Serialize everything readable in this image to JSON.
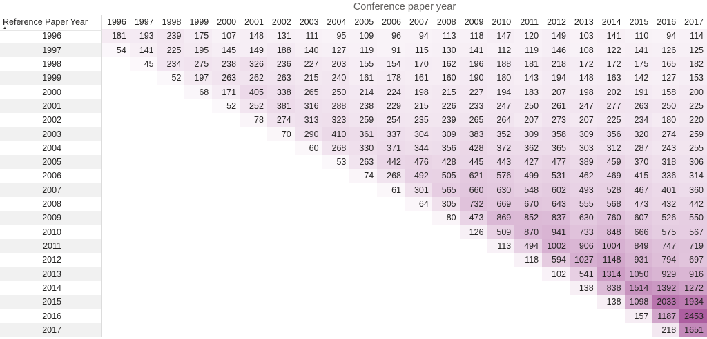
{
  "title": "Conference paper year",
  "header": {
    "corner_label": "Reference Paper Year",
    "sort_direction": "ascending",
    "sort_icon_glyph": "▲"
  },
  "colors": {
    "cell_text": "#252423",
    "title_text": "#605e5c",
    "row_stripe": "#f1f1f1",
    "grid_line": "#e6e6e6",
    "label_divider": "#dcdcdc",
    "heat_max": "#ad5ea0"
  },
  "chart_data": {
    "type": "heatmap",
    "title": "Conference paper year",
    "xlabel": "Conference paper year",
    "ylabel": "Reference Paper Year",
    "legend": "none",
    "row_banding": true,
    "sort": {
      "by": "Reference Paper Year",
      "direction": "ascending"
    },
    "color_scale": {
      "type": "sequential",
      "min_color": "#ffffff",
      "max_color": "#ad5ea0",
      "domain": [
        0,
        2453
      ],
      "gamma": 0.8
    },
    "columns": [
      1996,
      1997,
      1998,
      1999,
      2000,
      2001,
      2002,
      2003,
      2004,
      2005,
      2006,
      2007,
      2008,
      2009,
      2010,
      2011,
      2012,
      2013,
      2014,
      2015,
      2016,
      2017
    ],
    "rows": [
      1996,
      1997,
      1998,
      1999,
      2000,
      2001,
      2002,
      2003,
      2004,
      2005,
      2006,
      2007,
      2008,
      2009,
      2010,
      2011,
      2012,
      2013,
      2014,
      2015,
      2016,
      2017
    ],
    "matrix": [
      [
        181,
        193,
        239,
        175,
        107,
        148,
        131,
        111,
        95,
        109,
        96,
        94,
        113,
        118,
        147,
        120,
        149,
        103,
        141,
        110,
        94,
        114
      ],
      [
        54,
        141,
        225,
        195,
        145,
        149,
        188,
        140,
        127,
        119,
        91,
        115,
        130,
        141,
        112,
        119,
        146,
        108,
        122,
        141,
        126,
        125
      ],
      [
        null,
        45,
        234,
        275,
        238,
        326,
        236,
        227,
        203,
        155,
        154,
        170,
        162,
        196,
        188,
        181,
        218,
        172,
        172,
        175,
        165,
        182
      ],
      [
        null,
        null,
        52,
        197,
        263,
        262,
        263,
        215,
        240,
        161,
        178,
        161,
        160,
        190,
        180,
        143,
        194,
        148,
        163,
        142,
        127,
        153
      ],
      [
        null,
        null,
        null,
        68,
        171,
        405,
        338,
        265,
        250,
        214,
        224,
        198,
        215,
        227,
        194,
        183,
        207,
        198,
        202,
        191,
        158,
        200
      ],
      [
        null,
        null,
        null,
        null,
        52,
        252,
        381,
        316,
        288,
        238,
        229,
        215,
        226,
        233,
        247,
        250,
        261,
        247,
        277,
        263,
        250,
        225
      ],
      [
        null,
        null,
        null,
        null,
        null,
        78,
        274,
        313,
        323,
        259,
        254,
        235,
        239,
        265,
        264,
        207,
        273,
        207,
        225,
        234,
        180,
        220
      ],
      [
        null,
        null,
        null,
        null,
        null,
        null,
        70,
        290,
        410,
        361,
        337,
        304,
        309,
        383,
        352,
        309,
        358,
        309,
        356,
        320,
        274,
        259
      ],
      [
        null,
        null,
        null,
        null,
        null,
        null,
        null,
        60,
        268,
        330,
        371,
        344,
        356,
        428,
        372,
        362,
        365,
        303,
        312,
        287,
        243,
        255
      ],
      [
        null,
        null,
        null,
        null,
        null,
        null,
        null,
        null,
        53,
        263,
        442,
        476,
        428,
        445,
        443,
        427,
        477,
        389,
        459,
        370,
        318,
        306
      ],
      [
        null,
        null,
        null,
        null,
        null,
        null,
        null,
        null,
        null,
        74,
        268,
        492,
        505,
        621,
        576,
        499,
        531,
        462,
        469,
        415,
        336,
        314
      ],
      [
        null,
        null,
        null,
        null,
        null,
        null,
        null,
        null,
        null,
        null,
        61,
        301,
        565,
        660,
        630,
        548,
        602,
        493,
        528,
        467,
        401,
        360
      ],
      [
        null,
        null,
        null,
        null,
        null,
        null,
        null,
        null,
        null,
        null,
        null,
        64,
        305,
        732,
        669,
        670,
        643,
        555,
        568,
        473,
        432,
        442
      ],
      [
        null,
        null,
        null,
        null,
        null,
        null,
        null,
        null,
        null,
        null,
        null,
        null,
        80,
        473,
        869,
        852,
        837,
        630,
        760,
        607,
        526,
        550
      ],
      [
        null,
        null,
        null,
        null,
        null,
        null,
        null,
        null,
        null,
        null,
        null,
        null,
        null,
        126,
        509,
        870,
        941,
        733,
        848,
        666,
        575,
        567
      ],
      [
        null,
        null,
        null,
        null,
        null,
        null,
        null,
        null,
        null,
        null,
        null,
        null,
        null,
        null,
        113,
        494,
        1002,
        906,
        1004,
        849,
        747,
        719
      ],
      [
        null,
        null,
        null,
        null,
        null,
        null,
        null,
        null,
        null,
        null,
        null,
        null,
        null,
        null,
        null,
        118,
        594,
        1027,
        1148,
        931,
        794,
        697
      ],
      [
        null,
        null,
        null,
        null,
        null,
        null,
        null,
        null,
        null,
        null,
        null,
        null,
        null,
        null,
        null,
        null,
        102,
        541,
        1314,
        1050,
        929,
        916
      ],
      [
        null,
        null,
        null,
        null,
        null,
        null,
        null,
        null,
        null,
        null,
        null,
        null,
        null,
        null,
        null,
        null,
        null,
        138,
        838,
        1514,
        1392,
        1272
      ],
      [
        null,
        null,
        null,
        null,
        null,
        null,
        null,
        null,
        null,
        null,
        null,
        null,
        null,
        null,
        null,
        null,
        null,
        null,
        138,
        1098,
        2033,
        1934
      ],
      [
        null,
        null,
        null,
        null,
        null,
        null,
        null,
        null,
        null,
        null,
        null,
        null,
        null,
        null,
        null,
        null,
        null,
        null,
        null,
        157,
        1187,
        2453
      ],
      [
        null,
        null,
        null,
        null,
        null,
        null,
        null,
        null,
        null,
        null,
        null,
        null,
        null,
        null,
        null,
        null,
        null,
        null,
        null,
        null,
        218,
        1651
      ]
    ]
  }
}
